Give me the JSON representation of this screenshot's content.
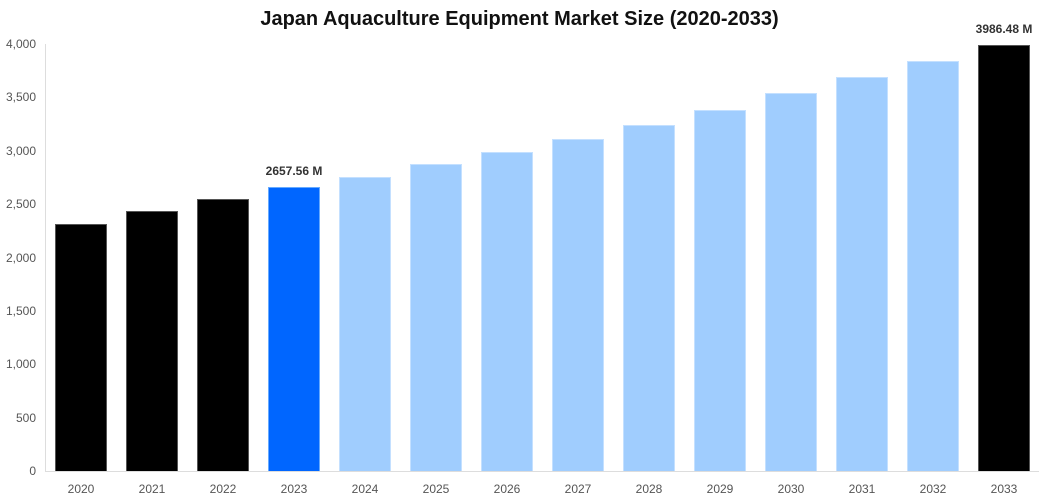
{
  "chart_data": {
    "type": "bar",
    "title": "Japan Aquaculture Equipment Market Size (2020-2033)",
    "xlabel": "",
    "ylabel": "",
    "ylim": [
      0,
      4000
    ],
    "yticks": [
      "0",
      "500",
      "1,000",
      "1,500",
      "2,000",
      "2,500",
      "3,000",
      "3,500",
      "4,000"
    ],
    "grid": false,
    "legend": null,
    "categories": [
      "2020",
      "2021",
      "2022",
      "2023",
      "2024",
      "2025",
      "2026",
      "2027",
      "2028",
      "2029",
      "2030",
      "2031",
      "2032",
      "2033"
    ],
    "values": [
      2314,
      2436,
      2548,
      2657.56,
      2754,
      2876,
      2988,
      3110,
      3241,
      3382,
      3541,
      3691,
      3841,
      3986.48
    ],
    "bar_styles": [
      "historical",
      "historical",
      "historical",
      "base",
      "forecast",
      "forecast",
      "forecast",
      "forecast",
      "forecast",
      "forecast",
      "forecast",
      "forecast",
      "forecast",
      "historical"
    ],
    "annotations": [
      {
        "category": "2023",
        "text": "2657.56 M"
      },
      {
        "category": "2033",
        "text": "3986.48 M"
      }
    ],
    "colors": {
      "historical": "#000000",
      "base": "#0066ff",
      "forecast": "#a0cdfe"
    }
  }
}
